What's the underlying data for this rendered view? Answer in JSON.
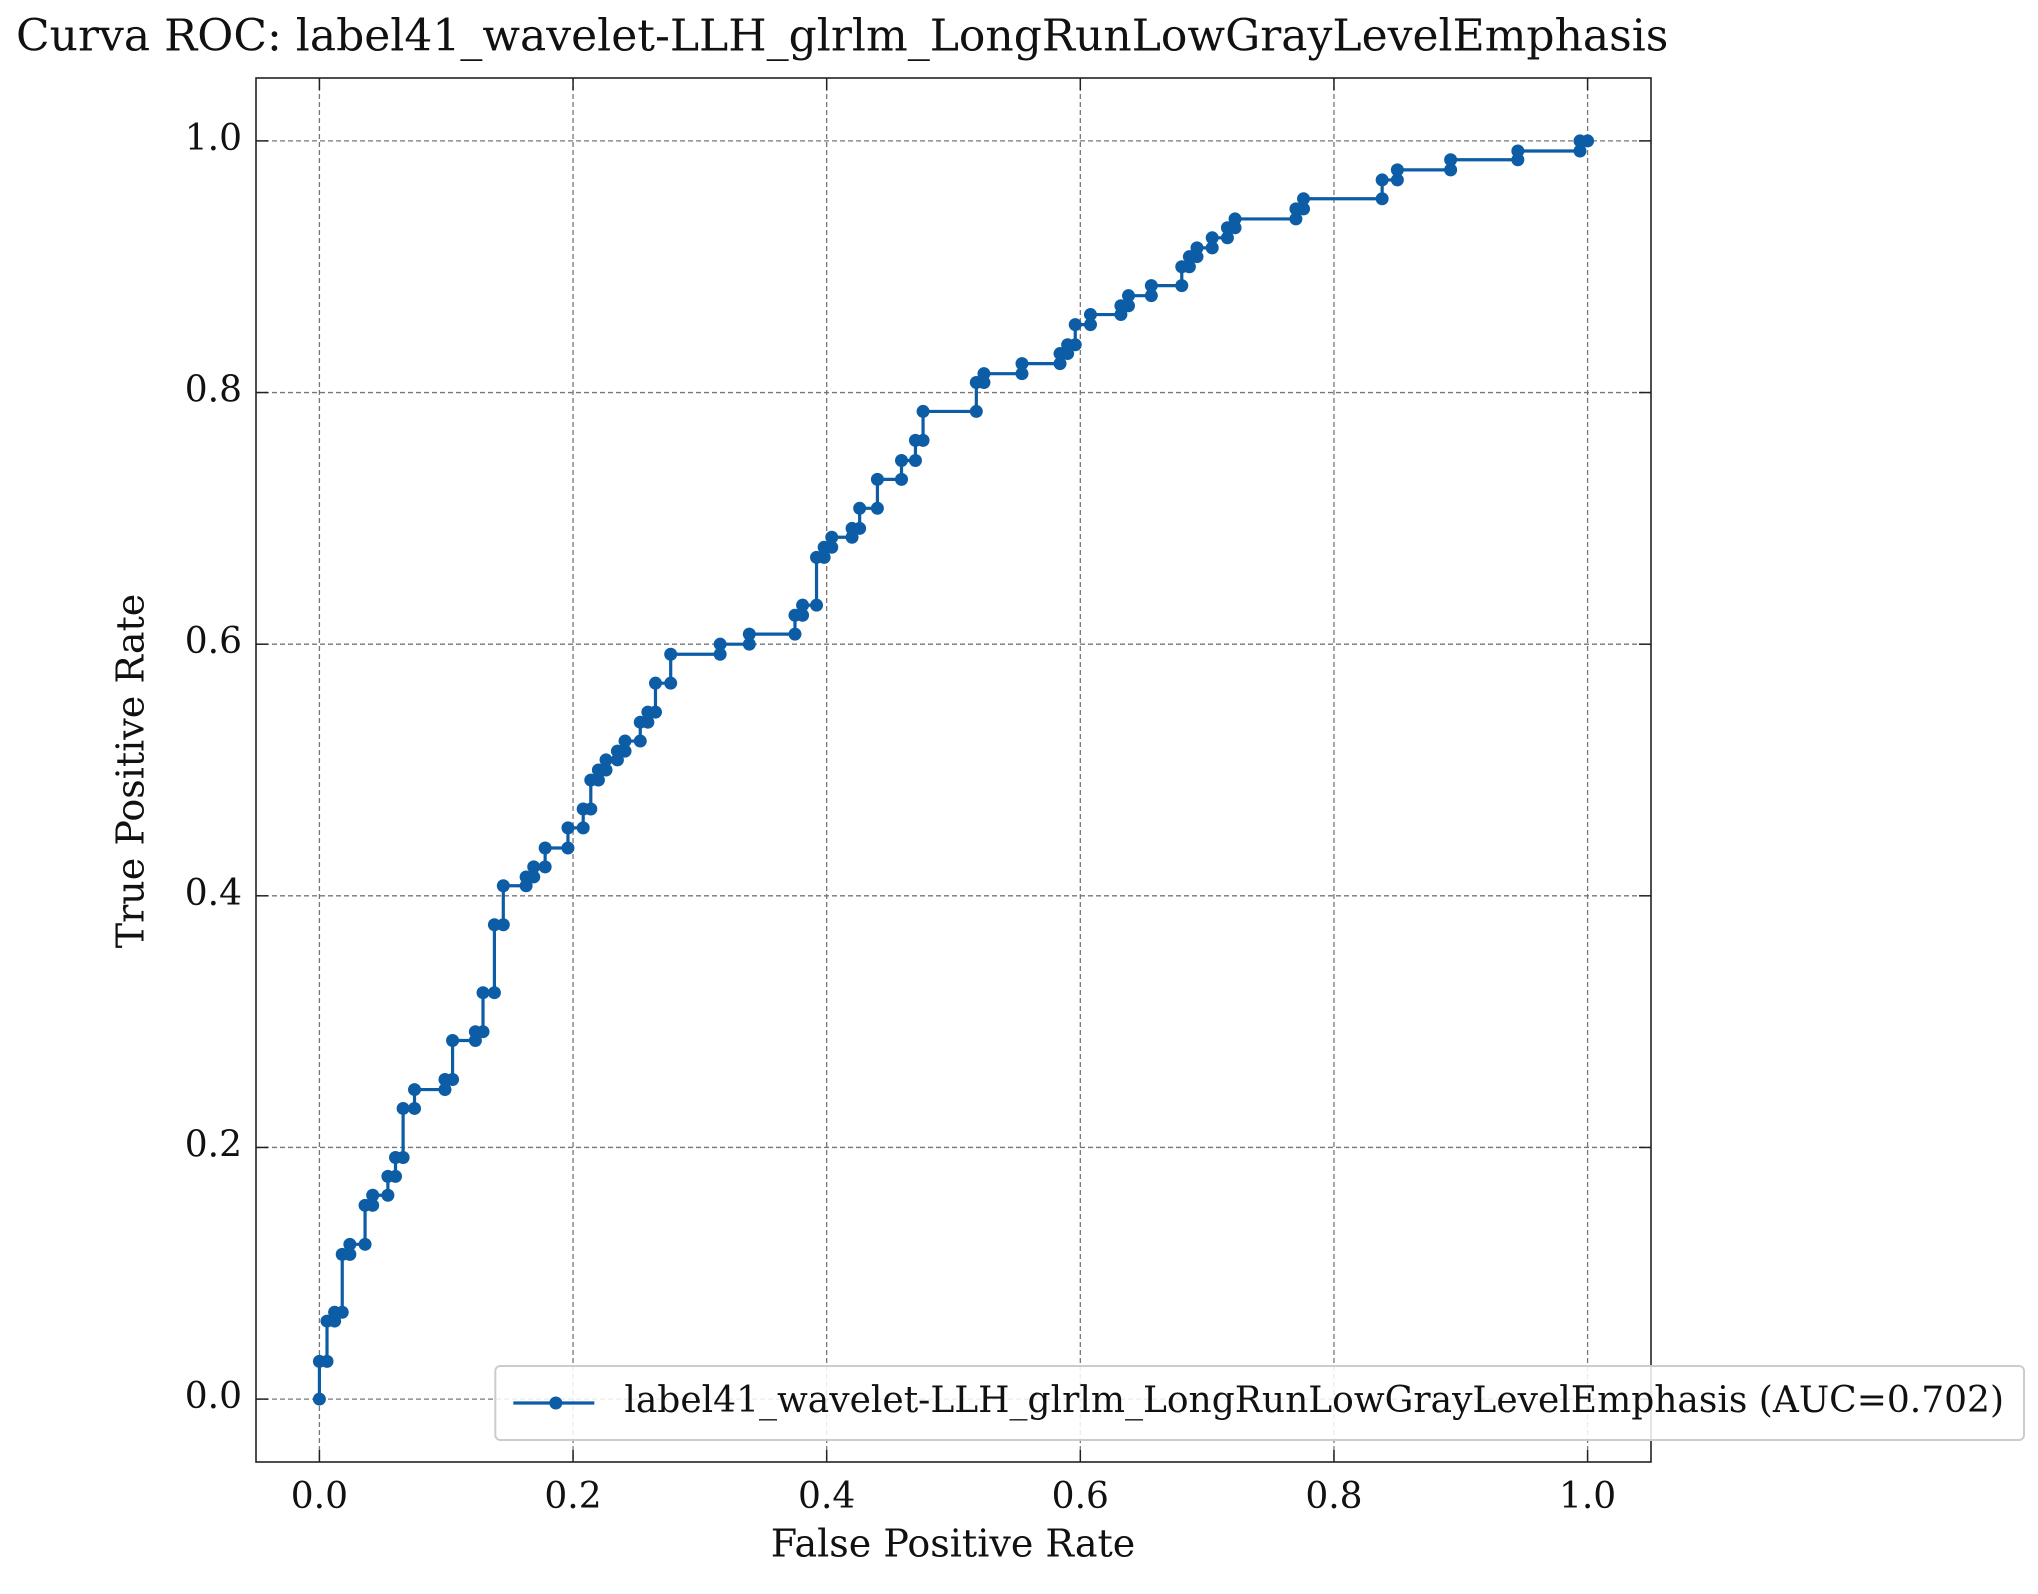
{
  "chart_data": {
    "type": "line",
    "title": "Curva ROC: label41_wavelet-LLH_glrlm_LongRunLowGrayLevelEmphasis",
    "x_label": "False Positive Rate",
    "y_label": "True Positive Rate",
    "xlim": [
      -0.05,
      1.05
    ],
    "ylim": [
      -0.05,
      1.05
    ],
    "xticks": [
      {
        "value": 0,
        "label": "0.0"
      },
      0.2,
      0.4,
      0.6,
      0.8,
      {
        "value": 1,
        "label": "1.0"
      }
    ],
    "yticks": [
      {
        "value": 0,
        "label": "0.0"
      },
      0.2,
      0.4,
      0.6,
      0.8,
      {
        "value": 1,
        "label": "1.0"
      }
    ],
    "grid": true,
    "legend": "lower right",
    "x": [
      0,
      0,
      0.006,
      0.006,
      0.012,
      0.012,
      0.018,
      0.018,
      0.024,
      0.024,
      0.036,
      0.036,
      0.042,
      0.042,
      0.054,
      0.054,
      0.06,
      0.06,
      0.066,
      0.066,
      0.075,
      0.075,
      0.099,
      0.099,
      0.105,
      0.105,
      0.123,
      0.123,
      0.129,
      0.129,
      0.138,
      0.138,
      0.145,
      0.145,
      0.163,
      0.163,
      0.169,
      0.169,
      0.178,
      0.178,
      0.196,
      0.196,
      0.208,
      0.208,
      0.214,
      0.214,
      0.22,
      0.22,
      0.226,
      0.226,
      0.235,
      0.235,
      0.241,
      0.241,
      0.253,
      0.253,
      0.259,
      0.259,
      0.265,
      0.265,
      0.277,
      0.277,
      0.316,
      0.316,
      0.339,
      0.339,
      0.375,
      0.375,
      0.381,
      0.381,
      0.392,
      0.392,
      0.398,
      0.398,
      0.404,
      0.404,
      0.42,
      0.42,
      0.426,
      0.426,
      0.44,
      0.44,
      0.459,
      0.459,
      0.47,
      0.47,
      0.476,
      0.476,
      0.518,
      0.518,
      0.524,
      0.524,
      0.554,
      0.554,
      0.584,
      0.584,
      0.59,
      0.59,
      0.596,
      0.596,
      0.608,
      0.608,
      0.632,
      0.632,
      0.638,
      0.638,
      0.656,
      0.656,
      0.68,
      0.68,
      0.686,
      0.686,
      0.692,
      0.692,
      0.704,
      0.704,
      0.716,
      0.716,
      0.722,
      0.722,
      0.77,
      0.77,
      0.776,
      0.776,
      0.838,
      0.838,
      0.85,
      0.85,
      0.892,
      0.892,
      0.945,
      0.945,
      0.994,
      0.994,
      1.0
    ],
    "series": [
      {
        "name": "label41_wavelet-LLH_glrlm_LongRunLowGrayLevelEmphasis (AUC=0.702)",
        "color": "#0c5da5",
        "values": [
          0,
          0.03,
          0.03,
          0.062,
          0.062,
          0.069,
          0.069,
          0.115,
          0.115,
          0.123,
          0.123,
          0.154,
          0.154,
          0.162,
          0.162,
          0.177,
          0.177,
          0.192,
          0.192,
          0.231,
          0.231,
          0.246,
          0.246,
          0.254,
          0.254,
          0.285,
          0.285,
          0.292,
          0.292,
          0.323,
          0.323,
          0.377,
          0.377,
          0.408,
          0.408,
          0.415,
          0.415,
          0.423,
          0.423,
          0.438,
          0.438,
          0.454,
          0.454,
          0.469,
          0.469,
          0.492,
          0.492,
          0.5,
          0.5,
          0.508,
          0.508,
          0.515,
          0.515,
          0.523,
          0.523,
          0.538,
          0.538,
          0.546,
          0.546,
          0.569,
          0.569,
          0.592,
          0.592,
          0.6,
          0.6,
          0.608,
          0.608,
          0.623,
          0.623,
          0.631,
          0.631,
          0.669,
          0.669,
          0.677,
          0.677,
          0.685,
          0.685,
          0.692,
          0.692,
          0.708,
          0.708,
          0.731,
          0.731,
          0.746,
          0.746,
          0.762,
          0.762,
          0.785,
          0.785,
          0.808,
          0.808,
          0.815,
          0.815,
          0.823,
          0.823,
          0.831,
          0.831,
          0.838,
          0.838,
          0.854,
          0.854,
          0.862,
          0.862,
          0.869,
          0.869,
          0.877,
          0.877,
          0.885,
          0.885,
          0.9,
          0.9,
          0.908,
          0.908,
          0.915,
          0.915,
          0.923,
          0.923,
          0.931,
          0.931,
          0.938,
          0.938,
          0.946,
          0.946,
          0.954,
          0.954,
          0.969,
          0.969,
          0.977,
          0.977,
          0.985,
          0.985,
          0.992,
          0.992,
          1.0,
          1.0
        ]
      }
    ]
  }
}
